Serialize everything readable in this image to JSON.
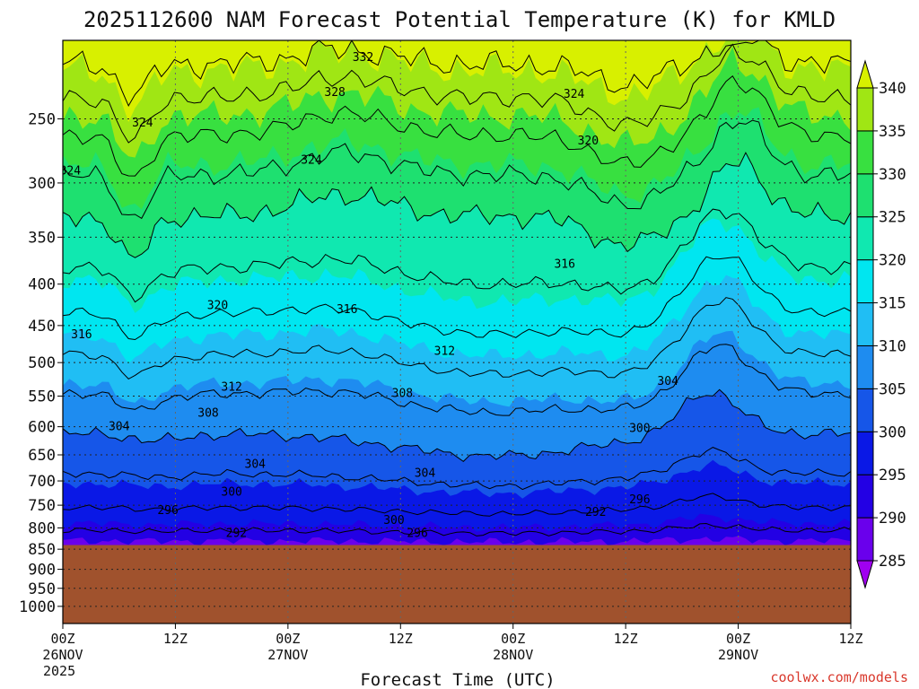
{
  "chart_data": {
    "type": "heatmap",
    "title": "2025112600 NAM Forecast Potential Temperature (K) for KMLD",
    "xlabel": "Forecast Time (UTC)",
    "ylabel": "",
    "credit": "coolwx.com/models",
    "y_scale": "log-pressure",
    "y_axis_reversed": true,
    "ylim": [
      1050,
      200
    ],
    "y_ticks": [
      250,
      300,
      350,
      400,
      450,
      500,
      550,
      600,
      650,
      700,
      750,
      800,
      850,
      900,
      950,
      1000
    ],
    "x_ticks": [
      {
        "hour": 0,
        "lines": [
          "00Z",
          "26NOV",
          "2025"
        ]
      },
      {
        "hour": 12,
        "lines": [
          "12Z"
        ]
      },
      {
        "hour": 24,
        "lines": [
          "00Z",
          "27NOV"
        ]
      },
      {
        "hour": 36,
        "lines": [
          "12Z"
        ]
      },
      {
        "hour": 48,
        "lines": [
          "00Z",
          "28NOV"
        ]
      },
      {
        "hour": 60,
        "lines": [
          "12Z"
        ]
      },
      {
        "hour": 72,
        "lines": [
          "00Z",
          "29NOV"
        ]
      },
      {
        "hour": 84,
        "lines": [
          "12Z"
        ]
      }
    ],
    "xlim_hours": [
      0,
      84
    ],
    "grid": true,
    "ground_level_hPa": 840,
    "ground_color": "#a0522d",
    "colorbar": {
      "placement": "right",
      "levels": [
        285,
        290,
        295,
        300,
        305,
        310,
        315,
        320,
        325,
        330,
        335,
        340
      ],
      "colors": [
        "#a000f0",
        "#6a00ec",
        "#2300e4",
        "#0a18e6",
        "#1656e8",
        "#1e8cf0",
        "#20bef4",
        "#00e6f0",
        "#10e8b0",
        "#1ee070",
        "#38e040",
        "#a0e614",
        "#d8f000"
      ]
    },
    "contour_labels": [
      {
        "value": "332",
        "hour": 32,
        "p": 210
      },
      {
        "value": "328",
        "hour": 29,
        "p": 232
      },
      {
        "value": "324",
        "hour": 54.5,
        "p": 233
      },
      {
        "value": "324",
        "hour": 8.5,
        "p": 253
      },
      {
        "value": "320",
        "hour": 56,
        "p": 266
      },
      {
        "value": "324",
        "hour": 0.8,
        "p": 290
      },
      {
        "value": "324",
        "hour": 26.5,
        "p": 281
      },
      {
        "value": "316",
        "hour": 53.5,
        "p": 378
      },
      {
        "value": "320",
        "hour": 16.5,
        "p": 425
      },
      {
        "value": "316",
        "hour": 30.3,
        "p": 430
      },
      {
        "value": "316",
        "hour": 2.0,
        "p": 462
      },
      {
        "value": "312",
        "hour": 40.7,
        "p": 484
      },
      {
        "value": "304",
        "hour": 64.5,
        "p": 527
      },
      {
        "value": "312",
        "hour": 18.0,
        "p": 536
      },
      {
        "value": "308",
        "hour": 36.2,
        "p": 546
      },
      {
        "value": "308",
        "hour": 15.5,
        "p": 577
      },
      {
        "value": "304",
        "hour": 6.0,
        "p": 600
      },
      {
        "value": "300",
        "hour": 61.5,
        "p": 603
      },
      {
        "value": "304",
        "hour": 20.5,
        "p": 668
      },
      {
        "value": "304",
        "hour": 38.6,
        "p": 685
      },
      {
        "value": "300",
        "hour": 18.0,
        "p": 723
      },
      {
        "value": "296",
        "hour": 11.2,
        "p": 761
      },
      {
        "value": "296",
        "hour": 61.5,
        "p": 738
      },
      {
        "value": "292",
        "hour": 56.8,
        "p": 765
      },
      {
        "value": "300",
        "hour": 35.3,
        "p": 783
      },
      {
        "value": "292",
        "hour": 18.5,
        "p": 813
      },
      {
        "value": "296",
        "hour": 37.8,
        "p": 813
      }
    ],
    "bands": [
      {
        "level": 340,
        "color": "#d8f000",
        "max_hour_span": [
          63,
          75
        ]
      },
      {
        "level": 335,
        "color": "#a0e614"
      },
      {
        "level": 330,
        "color": "#38e040"
      },
      {
        "level": 325,
        "color": "#1ee070"
      },
      {
        "level": 320,
        "color": "#10e8b0"
      },
      {
        "level": 315,
        "color": "#00e6f0"
      },
      {
        "level": 310,
        "color": "#20bef4"
      },
      {
        "level": 305,
        "color": "#1e8cf0"
      },
      {
        "level": 300,
        "color": "#1656e8"
      },
      {
        "level": 295,
        "color": "#0a18e6"
      },
      {
        "level": 290,
        "color": "#2300e4"
      },
      {
        "level": 285,
        "color": "#6a00ec"
      }
    ]
  }
}
